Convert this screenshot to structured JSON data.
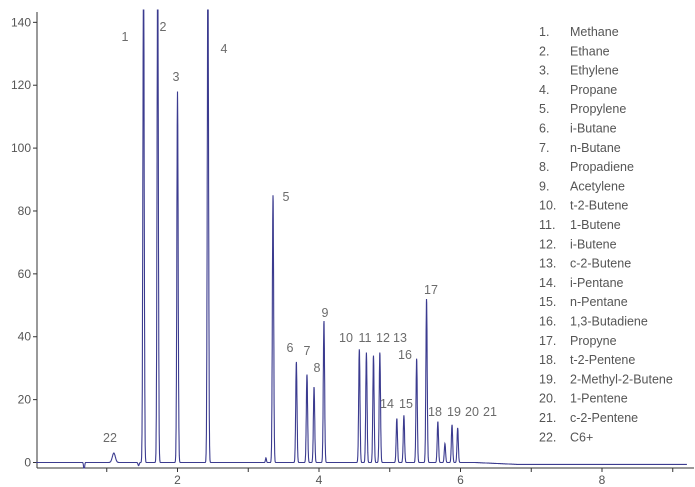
{
  "chart_data": {
    "type": "line",
    "title": "",
    "xlabel": "",
    "ylabel": "",
    "xlim": [
      0,
      9.2
    ],
    "ylim": [
      -2,
      144
    ],
    "x_ticks": [
      2,
      4,
      6,
      8
    ],
    "y_ticks": [
      0,
      20,
      40,
      60,
      80,
      100,
      120,
      140
    ],
    "grid": false,
    "legend_position": "top-right",
    "line_color": "#3b3b8f",
    "peaks": [
      {
        "label": "1",
        "x": 1.52,
        "y": 160
      },
      {
        "label": "2",
        "x": 1.72,
        "y": 160
      },
      {
        "label": "3",
        "x": 2.0,
        "y": 118
      },
      {
        "label": "4",
        "x": 2.43,
        "y": 160
      },
      {
        "label": "5",
        "x": 3.35,
        "y": 85
      },
      {
        "label": "6",
        "x": 3.68,
        "y": 32
      },
      {
        "label": "7",
        "x": 3.83,
        "y": 28
      },
      {
        "label": "8",
        "x": 3.93,
        "y": 24
      },
      {
        "label": "9",
        "x": 4.07,
        "y": 45
      },
      {
        "label": "10",
        "x": 4.57,
        "y": 36
      },
      {
        "label": "11",
        "x": 4.67,
        "y": 35
      },
      {
        "label": "12",
        "x": 4.77,
        "y": 34
      },
      {
        "label": "13",
        "x": 4.86,
        "y": 35
      },
      {
        "label": "14",
        "x": 5.1,
        "y": 14
      },
      {
        "label": "15",
        "x": 5.2,
        "y": 15
      },
      {
        "label": "16",
        "x": 5.38,
        "y": 33
      },
      {
        "label": "17",
        "x": 5.52,
        "y": 52
      },
      {
        "label": "18",
        "x": 5.68,
        "y": 13
      },
      {
        "label": "19",
        "x": 5.88,
        "y": 12
      },
      {
        "label": "20",
        "x": 5.78,
        "y": 6
      },
      {
        "label": "21",
        "x": 5.96,
        "y": 11
      },
      {
        "label": "22",
        "x": 1.1,
        "y": 3
      }
    ],
    "legend": [
      {
        "num": "1.",
        "name": "Methane"
      },
      {
        "num": "2.",
        "name": "Ethane"
      },
      {
        "num": "3.",
        "name": "Ethylene"
      },
      {
        "num": "4.",
        "name": "Propane"
      },
      {
        "num": "5.",
        "name": "Propylene"
      },
      {
        "num": "6.",
        "name": "i-Butane"
      },
      {
        "num": "7.",
        "name": "n-Butane"
      },
      {
        "num": "8.",
        "name": "Propadiene"
      },
      {
        "num": "9.",
        "name": "Acetylene"
      },
      {
        "num": "10.",
        "name": "t-2-Butene"
      },
      {
        "num": "11.",
        "name": "1-Butene"
      },
      {
        "num": "12.",
        "name": "i-Butene"
      },
      {
        "num": "13.",
        "name": "c-2-Butene"
      },
      {
        "num": "14.",
        "name": "i-Pentane"
      },
      {
        "num": "15.",
        "name": "n-Pentane"
      },
      {
        "num": "16.",
        "name": "1,3-Butadiene"
      },
      {
        "num": "17.",
        "name": "Propyne"
      },
      {
        "num": "18.",
        "name": "t-2-Pentene"
      },
      {
        "num": "19.",
        "name": "2-Methyl-2-Butene"
      },
      {
        "num": "20.",
        "name": "1-Pentene"
      },
      {
        "num": "21.",
        "name": "c-2-Pentene"
      },
      {
        "num": "22.",
        "name": "C6+"
      }
    ]
  }
}
